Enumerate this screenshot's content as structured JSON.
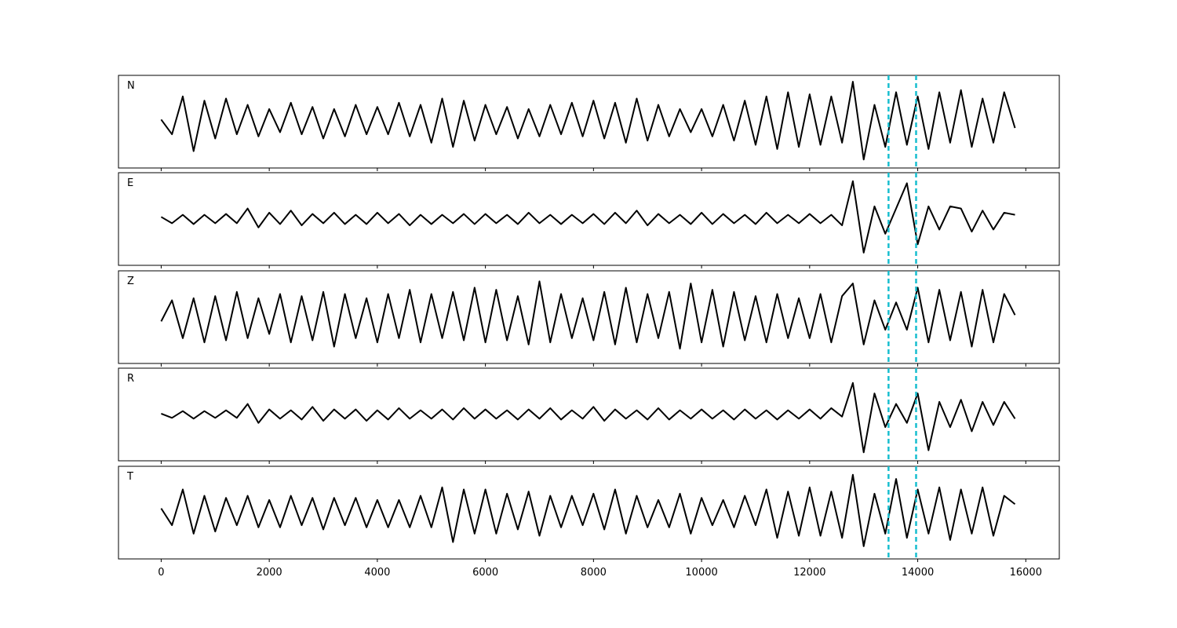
{
  "chart_data": {
    "type": "line",
    "subplots": true,
    "x": [
      0,
      200,
      400,
      600,
      800,
      1000,
      1200,
      1400,
      1600,
      1800,
      2000,
      2200,
      2400,
      2600,
      2800,
      3000,
      3200,
      3400,
      3600,
      3800,
      4000,
      4200,
      4400,
      4600,
      4800,
      5000,
      5200,
      5400,
      5600,
      5800,
      6000,
      6200,
      6400,
      6600,
      6800,
      7000,
      7200,
      7400,
      7600,
      7800,
      8000,
      8200,
      8400,
      8600,
      8800,
      9000,
      9200,
      9400,
      9600,
      9800,
      10000,
      10200,
      10400,
      10600,
      10800,
      11000,
      11200,
      11400,
      11600,
      11800,
      12000,
      12200,
      12400,
      12600,
      12800,
      13000,
      13200,
      13400,
      13600,
      13800,
      14000,
      14200,
      14400,
      14600,
      14800,
      15000,
      15200,
      15400,
      15600,
      15800
    ],
    "series": [
      {
        "name": "N",
        "color": "#000000",
        "values": [
          0.05,
          -0.3,
          0.6,
          -0.7,
          0.5,
          -0.4,
          0.55,
          -0.3,
          0.4,
          -0.35,
          0.3,
          -0.25,
          0.45,
          -0.3,
          0.35,
          -0.4,
          0.3,
          -0.35,
          0.4,
          -0.3,
          0.35,
          -0.3,
          0.45,
          -0.35,
          0.4,
          -0.5,
          0.55,
          -0.6,
          0.5,
          -0.45,
          0.4,
          -0.3,
          0.35,
          -0.4,
          0.3,
          -0.35,
          0.4,
          -0.3,
          0.45,
          -0.35,
          0.5,
          -0.4,
          0.45,
          -0.5,
          0.55,
          -0.45,
          0.4,
          -0.35,
          0.3,
          -0.25,
          0.3,
          -0.35,
          0.4,
          -0.45,
          0.5,
          -0.55,
          0.6,
          -0.65,
          0.7,
          -0.6,
          0.65,
          -0.55,
          0.6,
          -0.5,
          0.95,
          -0.9,
          0.4,
          -0.6,
          0.7,
          -0.55,
          0.6,
          -0.65,
          0.7,
          -0.5,
          0.75,
          -0.6,
          0.55,
          -0.5,
          0.7,
          -0.15
        ]
      },
      {
        "name": "E",
        "color": "#000000",
        "values": [
          0.05,
          -0.1,
          0.1,
          -0.12,
          0.1,
          -0.1,
          0.12,
          -0.1,
          0.25,
          -0.2,
          0.15,
          -0.12,
          0.2,
          -0.15,
          0.12,
          -0.1,
          0.15,
          -0.12,
          0.1,
          -0.12,
          0.15,
          -0.1,
          0.12,
          -0.15,
          0.1,
          -0.12,
          0.1,
          -0.1,
          0.12,
          -0.12,
          0.12,
          -0.1,
          0.1,
          -0.12,
          0.15,
          -0.1,
          0.1,
          -0.12,
          0.1,
          -0.1,
          0.12,
          -0.12,
          0.15,
          -0.1,
          0.2,
          -0.15,
          0.12,
          -0.1,
          0.1,
          -0.12,
          0.15,
          -0.12,
          0.12,
          -0.1,
          0.1,
          -0.12,
          0.15,
          -0.1,
          0.1,
          -0.1,
          0.12,
          -0.1,
          0.1,
          -0.15,
          0.9,
          -0.8,
          0.3,
          -0.35,
          0.25,
          0.85,
          -0.6,
          0.3,
          -0.25,
          0.3,
          0.25,
          -0.3,
          0.2,
          -0.25,
          0.15,
          0.1
        ]
      },
      {
        "name": "Z",
        "color": "#000000",
        "values": [
          -0.1,
          0.4,
          -0.5,
          0.45,
          -0.6,
          0.5,
          -0.55,
          0.6,
          -0.5,
          0.45,
          -0.4,
          0.55,
          -0.6,
          0.5,
          -0.55,
          0.6,
          -0.7,
          0.55,
          -0.5,
          0.45,
          -0.6,
          0.55,
          -0.5,
          0.65,
          -0.6,
          0.55,
          -0.5,
          0.6,
          -0.55,
          0.7,
          -0.6,
          0.65,
          -0.55,
          0.5,
          -0.65,
          0.85,
          -0.6,
          0.55,
          -0.5,
          0.45,
          -0.55,
          0.6,
          -0.65,
          0.7,
          -0.6,
          0.55,
          -0.5,
          0.6,
          -0.75,
          0.8,
          -0.6,
          0.65,
          -0.7,
          0.6,
          -0.55,
          0.5,
          -0.6,
          0.55,
          -0.5,
          0.45,
          -0.5,
          0.55,
          -0.6,
          0.5,
          0.8,
          -0.65,
          0.4,
          -0.3,
          0.35,
          -0.3,
          0.7,
          -0.6,
          0.65,
          -0.55,
          0.6,
          -0.7,
          0.65,
          -0.6,
          0.55,
          0.05
        ]
      },
      {
        "name": "R",
        "color": "#000000",
        "values": [
          0.02,
          -0.08,
          0.08,
          -0.1,
          0.08,
          -0.08,
          0.1,
          -0.08,
          0.25,
          -0.2,
          0.12,
          -0.1,
          0.1,
          -0.12,
          0.18,
          -0.15,
          0.12,
          -0.1,
          0.12,
          -0.15,
          0.1,
          -0.12,
          0.15,
          -0.1,
          0.1,
          -0.1,
          0.12,
          -0.12,
          0.15,
          -0.1,
          0.12,
          -0.1,
          0.1,
          -0.12,
          0.12,
          -0.1,
          0.15,
          -0.12,
          0.1,
          -0.1,
          0.18,
          -0.15,
          0.12,
          -0.1,
          0.1,
          -0.12,
          0.15,
          -0.12,
          0.1,
          -0.1,
          0.12,
          -0.1,
          0.1,
          -0.12,
          0.12,
          -0.1,
          0.1,
          -0.12,
          0.1,
          -0.1,
          0.12,
          -0.1,
          0.15,
          -0.05,
          0.75,
          -0.9,
          0.5,
          -0.3,
          0.25,
          -0.2,
          0.5,
          -0.85,
          0.3,
          -0.3,
          0.35,
          -0.4,
          0.3,
          -0.25,
          0.3,
          -0.1
        ]
      },
      {
        "name": "T",
        "color": "#000000",
        "values": [
          0.1,
          -0.3,
          0.55,
          -0.5,
          0.4,
          -0.45,
          0.35,
          -0.3,
          0.4,
          -0.35,
          0.3,
          -0.35,
          0.4,
          -0.3,
          0.35,
          -0.4,
          0.35,
          -0.3,
          0.35,
          -0.35,
          0.3,
          -0.35,
          0.3,
          -0.35,
          0.4,
          -0.35,
          0.6,
          -0.7,
          0.55,
          -0.5,
          0.55,
          -0.5,
          0.45,
          -0.4,
          0.5,
          -0.55,
          0.4,
          -0.35,
          0.4,
          -0.3,
          0.45,
          -0.4,
          0.55,
          -0.5,
          0.4,
          -0.35,
          0.3,
          -0.35,
          0.45,
          -0.5,
          0.35,
          -0.3,
          0.3,
          -0.35,
          0.4,
          -0.3,
          0.55,
          -0.6,
          0.5,
          -0.55,
          0.6,
          -0.55,
          0.5,
          -0.6,
          0.9,
          -0.8,
          0.45,
          -0.5,
          0.8,
          -0.6,
          0.55,
          -0.5,
          0.6,
          -0.65,
          0.55,
          -0.5,
          0.6,
          -0.55,
          0.4,
          0.2
        ]
      }
    ],
    "xlim": [
      -790,
      16620
    ],
    "xticks": [
      0,
      2000,
      4000,
      6000,
      8000,
      10000,
      12000,
      14000,
      16000
    ],
    "ylim": [
      -1.1,
      1.1
    ],
    "vlines": [
      13460,
      13970
    ],
    "vline_color": "#17becf"
  }
}
